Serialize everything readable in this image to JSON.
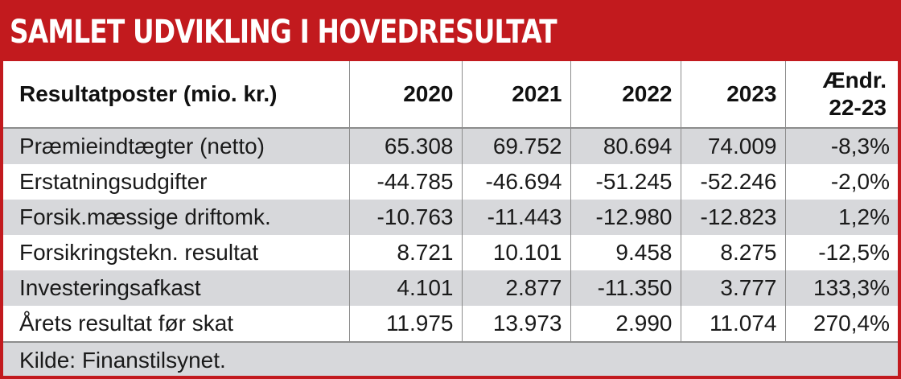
{
  "title": "SAMLET UDVIKLING I HOVEDRESULTAT",
  "headers": [
    "Resultatposter (mio. kr.)",
    "2020",
    "2021",
    "2022",
    "2023",
    "Ændr.",
    "22-23"
  ],
  "rows": [
    {
      "label": "Præmieindtægter (netto)",
      "values": [
        "65.308",
        "69.752",
        "80.694",
        "74.009",
        "-8,3%"
      ]
    },
    {
      "label": "Erstatningsudgifter",
      "values": [
        "-44.785",
        "-46.694",
        "-51.245",
        "-52.246",
        "-2,0%"
      ]
    },
    {
      "label": "Forsik.mæssige driftomk.",
      "values": [
        "-10.763",
        "-11.443",
        "-12.980",
        "-12.823",
        "1,2%"
      ]
    },
    {
      "label": "Forsikringstekn. resultat",
      "values": [
        "8.721",
        "10.101",
        "9.458",
        "8.275",
        "-12,5%"
      ]
    },
    {
      "label": "Investeringsafkast",
      "values": [
        "4.101",
        "2.877",
        "-11.350",
        "3.777",
        "133,3%"
      ]
    },
    {
      "label": "Årets resultat før skat",
      "values": [
        "11.975",
        "13.973",
        "2.990",
        "11.074",
        "270,4%"
      ]
    }
  ],
  "source": "Kilde: Finanstilsynet.",
  "colors": {
    "accent": "#c21a1e",
    "shade": "#d7d8db"
  }
}
